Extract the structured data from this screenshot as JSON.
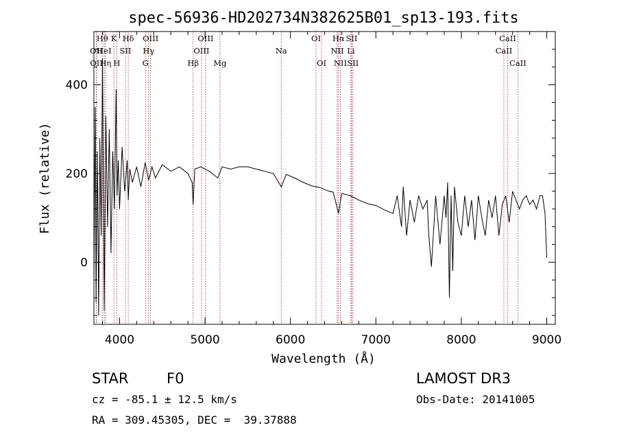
{
  "chart_data": {
    "type": "line",
    "title": "spec-56936-HD202734N382625B01_sp13-193.fits",
    "xlabel": "Wavelength (Å)",
    "ylabel": "Flux (relative)",
    "xlim": [
      3700,
      9100
    ],
    "ylim": [
      -140,
      520
    ],
    "xticks": [
      4000,
      5000,
      6000,
      7000,
      8000,
      9000
    ],
    "yticks": [
      0,
      200,
      400
    ],
    "grid": false,
    "series": [
      {
        "name": "flux",
        "x": [
          3700,
          3715,
          3725,
          3740,
          3755,
          3770,
          3785,
          3800,
          3820,
          3840,
          3860,
          3880,
          3900,
          3920,
          3940,
          3960,
          3970,
          3985,
          4000,
          4030,
          4060,
          4090,
          4102,
          4120,
          4150,
          4200,
          4250,
          4300,
          4340,
          4380,
          4420,
          4500,
          4600,
          4700,
          4800,
          4850,
          4861,
          4880,
          4950,
          5050,
          5150,
          5200,
          5300,
          5400,
          5500,
          5600,
          5700,
          5800,
          5893,
          5950,
          6050,
          6150,
          6250,
          6350,
          6450,
          6500,
          6563,
          6600,
          6700,
          6800,
          6900,
          7000,
          7100,
          7200,
          7250,
          7300,
          7320,
          7360,
          7400,
          7450,
          7500,
          7550,
          7600,
          7620,
          7650,
          7700,
          7750,
          7800,
          7820,
          7840,
          7860,
          7880,
          7900,
          7920,
          7960,
          8000,
          8040,
          8080,
          8120,
          8160,
          8200,
          8240,
          8280,
          8320,
          8360,
          8400,
          8440,
          8480,
          8520,
          8560,
          8600,
          8640,
          8680,
          8720,
          8760,
          8800,
          8840,
          8880,
          8920,
          8950,
          8980,
          9000
        ],
        "y": [
          -40,
          350,
          -90,
          250,
          -120,
          280,
          60,
          460,
          -110,
          330,
          80,
          300,
          20,
          250,
          120,
          390,
          150,
          230,
          120,
          260,
          160,
          230,
          140,
          210,
          180,
          215,
          170,
          225,
          185,
          215,
          190,
          220,
          205,
          215,
          200,
          180,
          130,
          210,
          215,
          205,
          190,
          215,
          210,
          215,
          215,
          210,
          205,
          200,
          170,
          198,
          190,
          180,
          172,
          168,
          160,
          158,
          110,
          155,
          150,
          140,
          132,
          128,
          118,
          110,
          150,
          80,
          170,
          60,
          140,
          90,
          150,
          120,
          140,
          60,
          -10,
          150,
          40,
          150,
          100,
          180,
          -80,
          150,
          -20,
          170,
          90,
          60,
          150,
          80,
          140,
          50,
          150,
          100,
          60,
          140,
          100,
          150,
          60,
          130,
          150,
          90,
          160,
          140,
          120,
          140,
          150,
          130,
          140,
          120,
          150,
          150,
          110,
          10
        ]
      }
    ],
    "lines": [
      {
        "label": "OII",
        "x": 3727,
        "row": 2
      },
      {
        "label": "OII",
        "x": 3729,
        "row": 3
      },
      {
        "label": "Hθ",
        "x": 3798,
        "row": 1
      },
      {
        "label": "HeI",
        "x": 3820,
        "row": 2
      },
      {
        "label": "Hη",
        "x": 3835,
        "row": 3
      },
      {
        "label": "K",
        "x": 3934,
        "row": 1
      },
      {
        "label": "SII",
        "x": 4069,
        "row": 2
      },
      {
        "label": "H",
        "x": 3968,
        "row": 3
      },
      {
        "label": "Hδ",
        "x": 4102,
        "row": 1
      },
      {
        "label": "OIII",
        "x": 4363,
        "row": 1
      },
      {
        "label": "Hγ",
        "x": 4340,
        "row": 2
      },
      {
        "label": "G",
        "x": 4304,
        "row": 3
      },
      {
        "label": "Hβ",
        "x": 4861,
        "row": 3
      },
      {
        "label": "OIII",
        "x": 5007,
        "row": 1
      },
      {
        "label": "OIII",
        "x": 4959,
        "row": 2
      },
      {
        "label": "Mg",
        "x": 5175,
        "row": 3
      },
      {
        "label": "Na",
        "x": 5893,
        "row": 2
      },
      {
        "label": "OI",
        "x": 6300,
        "row": 1
      },
      {
        "label": "OI",
        "x": 6364,
        "row": 3
      },
      {
        "label": "Hα",
        "x": 6563,
        "row": 1
      },
      {
        "label": "NII",
        "x": 6548,
        "row": 2
      },
      {
        "label": "NII",
        "x": 6584,
        "row": 3
      },
      {
        "label": "SII",
        "x": 6716,
        "row": 1
      },
      {
        "label": "Li",
        "x": 6708,
        "row": 2
      },
      {
        "label": "SII",
        "x": 6731,
        "row": 3
      },
      {
        "label": "CaII",
        "x": 8542,
        "row": 1
      },
      {
        "label": "CaII",
        "x": 8498,
        "row": 2
      },
      {
        "label": "CaII",
        "x": 8662,
        "row": 3
      }
    ]
  },
  "info": {
    "object_class": "STAR",
    "subclass": "F0",
    "cz": "cz = -85.1 ± 12.5 km/s",
    "coords": "RA = 309.45305, DEC =  39.37888",
    "survey": "LAMOST DR3",
    "obs_date": "Obs-Date: 20141005"
  }
}
